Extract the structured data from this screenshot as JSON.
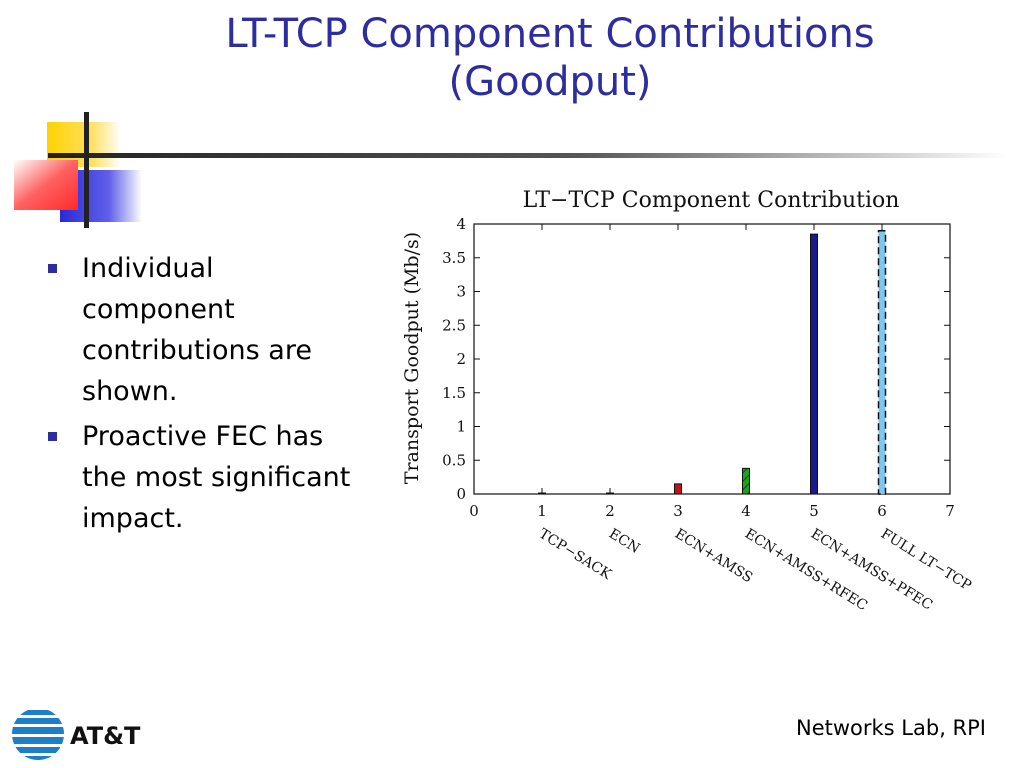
{
  "slide": {
    "title_line1": "LT-TCP Component Contributions",
    "title_line2": "(Goodput)",
    "bullets": [
      "Individual component contributions are shown.",
      "Proactive FEC has the most significant impact."
    ],
    "footer": "Networks Lab, RPI",
    "logo_text": "AT&T"
  },
  "colors": {
    "title": "#2d2d9f",
    "bullet": "#2d2d9f"
  },
  "chart_data": {
    "type": "bar",
    "title": "LT−TCP Component Contribution",
    "ylabel": "Transport Goodput (Mb/s)",
    "xlabel": "",
    "xlim": [
      0,
      7
    ],
    "ylim": [
      0,
      4
    ],
    "x_ticks": [
      "0",
      "1",
      "2",
      "3",
      "4",
      "5",
      "6",
      "7"
    ],
    "y_ticks": [
      "0",
      "0.5",
      "1",
      "1.5",
      "2",
      "2.5",
      "3",
      "3.5",
      "4"
    ],
    "grid": false,
    "categories": [
      "TCP−SACK",
      "ECN",
      "ECN+AMSS",
      "ECN+AMSS+RFEC",
      "ECN+AMSS+PFEC",
      "FULL LT−TCP"
    ],
    "x": [
      1,
      2,
      3,
      4,
      5,
      6
    ],
    "values": [
      0.0,
      0.0,
      0.15,
      0.38,
      3.85,
      3.9
    ],
    "bar_colors": [
      "#000000",
      "#000000",
      "#c0101a",
      "#1fa11f",
      "#1a1a8c",
      "#7ec8f0"
    ],
    "bar_patterns": [
      "none",
      "none",
      "solid",
      "hatch",
      "solid",
      "dashed-edge"
    ]
  }
}
